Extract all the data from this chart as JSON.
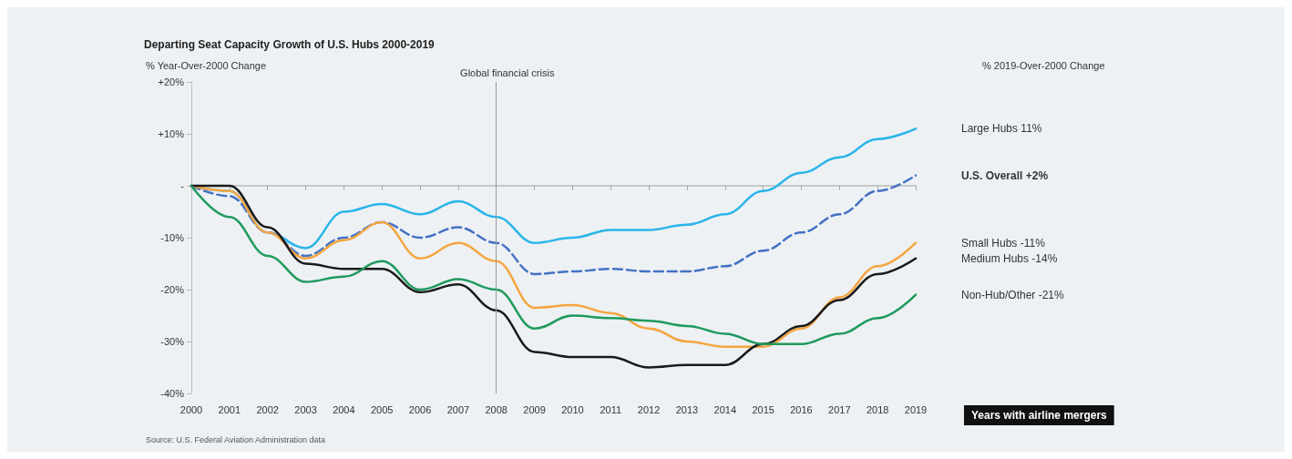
{
  "chart_data": {
    "type": "line",
    "title": "Departing Seat Capacity Growth of U.S. Hubs 2000-2019",
    "ylabel": "% Year-Over-2000 Change",
    "legend_title": "% 2019-Over-2000 Change",
    "categories": [
      "2000",
      "2001",
      "2002",
      "2003",
      "2004",
      "2005",
      "2006",
      "2007",
      "2008",
      "2009",
      "2010",
      "2011",
      "2012",
      "2013",
      "2014",
      "2015",
      "2016",
      "2017",
      "2018",
      "2019"
    ],
    "series": [
      {
        "name": "Large Hubs 11%",
        "color": "#29b5e8",
        "values": [
          0,
          -1,
          -9,
          -12,
          -5,
          -3.5,
          -5.5,
          -3,
          -6,
          -11,
          -10,
          -8.5,
          -8.5,
          -7.5,
          -5.5,
          -1,
          2.5,
          5.5,
          9,
          11
        ]
      },
      {
        "name": "U.S. Overall +2%",
        "color": "#4472c4",
        "line_style": "dashed",
        "values": [
          0,
          -2,
          -9,
          -13.5,
          -10,
          -7,
          -10,
          -8,
          -11,
          -17,
          -16.5,
          -16,
          -16.5,
          -16.5,
          -15.5,
          -12.5,
          -9,
          -5.5,
          -1,
          2
        ]
      },
      {
        "name": "Small Hubs -11%",
        "color": "#f5a540",
        "values": [
          0,
          -1,
          -9,
          -14,
          -10.5,
          -7,
          -14,
          -11,
          -14.5,
          -23.5,
          -23,
          -24.5,
          -27.5,
          -30,
          -31,
          -31,
          -27.5,
          -21.5,
          -15.5,
          -11
        ]
      },
      {
        "name": "Medium Hubs -14%",
        "color": "#1a1a1a",
        "values": [
          0,
          0,
          -8,
          -15,
          -16,
          -16,
          -20.5,
          -19,
          -24,
          -32,
          -33,
          -33,
          -35,
          -34.5,
          -34.5,
          -30.5,
          -27,
          -22,
          -17,
          -14
        ]
      },
      {
        "name": "Non-Hub/Other -21%",
        "color": "#1f9a5e",
        "values": [
          0,
          -6,
          -13.5,
          -18.5,
          -17.5,
          -14.5,
          -20,
          -18,
          -20,
          -27.5,
          -25,
          -25.5,
          -26,
          -27,
          -28.5,
          -30.5,
          -30.5,
          -28.5,
          -25.5,
          -21
        ]
      }
    ],
    "ylim": [
      -40,
      20
    ],
    "yticks": [
      {
        "value": 20,
        "label": "+20%"
      },
      {
        "value": 10,
        "label": "+10%"
      },
      {
        "value": 0,
        "label": "-"
      },
      {
        "value": -10,
        "label": "-10%"
      },
      {
        "value": -20,
        "label": "-20%"
      },
      {
        "value": -30,
        "label": "-30%"
      },
      {
        "value": -40,
        "label": "-40%"
      }
    ],
    "ref_lines": [
      {
        "axis": "x",
        "value": "2008",
        "label": "Global financial crisis",
        "color": "#999999"
      }
    ],
    "annotations": [
      "Years with airline mergers",
      "Source: U.S. Federal Aviation Administration data"
    ],
    "grid": false,
    "legend": false,
    "marker": "none"
  }
}
